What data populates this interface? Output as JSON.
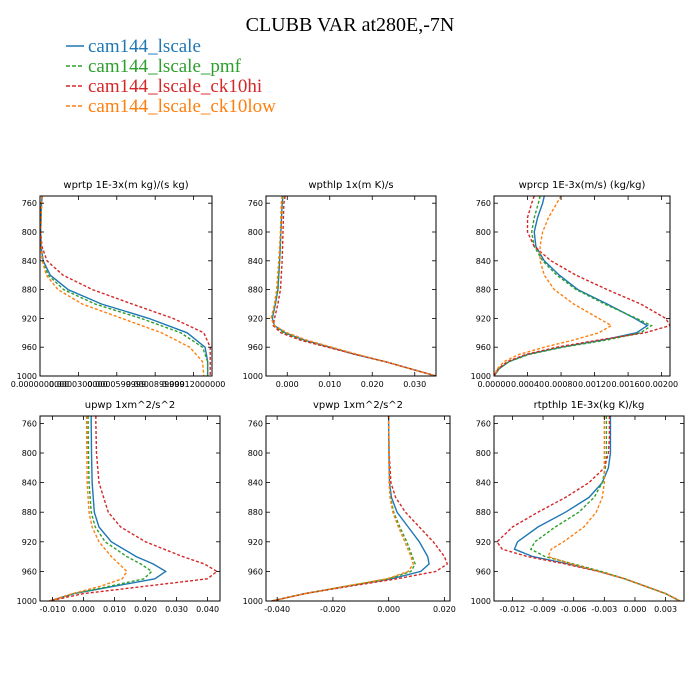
{
  "title": "CLUBB VAR at280E,-7N",
  "legend": [
    {
      "label": "cam144_lscale",
      "color": "#1f77b4",
      "dash": false
    },
    {
      "label": "cam144_lscale_pmf",
      "color": "#2ca02c",
      "dash": true
    },
    {
      "label": "cam144_lscale_ck10hi",
      "color": "#d62728",
      "dash": true
    },
    {
      "label": "cam144_lscale_ck10low",
      "color": "#ff7f0e",
      "dash": true
    }
  ],
  "chart_data": [
    {
      "type": "line",
      "title": "wprtp  1E-3x(m kg)/(s kg)",
      "ylim": [
        1000,
        750
      ],
      "yticks": [
        760,
        800,
        840,
        880,
        920,
        960,
        1000
      ],
      "xlim": [
        0.0,
        0.0001344
      ],
      "xticks": [
        0.0,
        3e-05,
        6e-05,
        9e-05,
        0.00012
      ],
      "xticklabels": [
        "0.0000000000",
        "0.0000300000",
        "0.0000599999",
        "0.0000899999",
        "0.00012000000"
      ],
      "y": [
        750,
        760,
        780,
        800,
        820,
        840,
        860,
        880,
        900,
        920,
        940,
        960,
        980,
        1000
      ],
      "series": [
        {
          "name": "cam144_lscale",
          "values": [
            1.7e-06,
            1.2e-06,
            8e-07,
            5e-07,
            8e-07,
            2.5e-06,
            8e-06,
            2.2e-05,
            4.8e-05,
            8.5e-05,
            0.000115,
            0.000129,
            0.000131,
            0.000131
          ]
        },
        {
          "name": "cam144_lscale_pmf",
          "values": [
            1.7e-06,
            1.2e-06,
            8e-07,
            5e-07,
            8e-07,
            2e-06,
            6.5e-06,
            1.85e-05,
            4.3e-05,
            7.9e-05,
            0.00011,
            0.000127,
            0.000131,
            0.000131
          ]
        },
        {
          "name": "cam144_lscale_ck10hi",
          "values": [
            1.7e-06,
            1.2e-06,
            8e-07,
            6e-07,
            1.5e-06,
            5.5e-06,
            1.8e-05,
            4.1e-05,
            7.2e-05,
            0.000104,
            0.000128,
            0.000133,
            0.000133,
            0.000133
          ]
        },
        {
          "name": "cam144_lscale_ck10low",
          "values": [
            1.7e-06,
            1.2e-06,
            8e-07,
            5e-07,
            7e-07,
            1.8e-06,
            5e-06,
            1.4e-05,
            3.3e-05,
            6.4e-05,
            9.5e-05,
            0.000117,
            0.000127,
            0.000128
          ]
        }
      ]
    },
    {
      "type": "line",
      "title": "wpthlp  1x(m K)/s",
      "ylim": [
        1000,
        750
      ],
      "yticks": [
        760,
        800,
        840,
        880,
        920,
        960,
        1000
      ],
      "xlim": [
        -0.005,
        0.035
      ],
      "xticks": [
        0.0,
        0.01,
        0.02,
        0.03
      ],
      "xticklabels": [
        "0.000",
        "0.010",
        "0.020",
        "0.030"
      ],
      "y": [
        750,
        760,
        800,
        840,
        880,
        900,
        920,
        930,
        940,
        950,
        960,
        970,
        980,
        990,
        1000
      ],
      "series": [
        {
          "name": "cam144_lscale",
          "values": [
            -0.001,
            -0.0012,
            -0.0015,
            -0.0018,
            -0.0022,
            -0.0028,
            -0.0035,
            -0.003,
            -0.0005,
            0.004,
            0.01,
            0.016,
            0.023,
            0.029,
            0.035
          ]
        },
        {
          "name": "cam144_lscale_pmf",
          "values": [
            -0.001,
            -0.0012,
            -0.0015,
            -0.0018,
            -0.0022,
            -0.0028,
            -0.0036,
            -0.0032,
            -0.0008,
            0.0036,
            0.0098,
            0.016,
            0.023,
            0.029,
            0.035
          ]
        },
        {
          "name": "cam144_lscale_ck10hi",
          "values": [
            -0.0005,
            -0.0008,
            -0.001,
            -0.0012,
            -0.0016,
            -0.0022,
            -0.003,
            -0.0033,
            -0.0015,
            0.003,
            0.0095,
            0.016,
            0.023,
            0.029,
            0.035
          ]
        },
        {
          "name": "cam144_lscale_ck10low",
          "values": [
            -0.0012,
            -0.0014,
            -0.0016,
            -0.002,
            -0.0025,
            -0.003,
            -0.0038,
            -0.003,
            0.0,
            0.0045,
            0.0105,
            0.0165,
            0.023,
            0.029,
            0.035
          ]
        }
      ]
    },
    {
      "type": "line",
      "title": "wprcp  1E-3x(m/s) (kg/kg)",
      "ylim": [
        1000,
        750
      ],
      "yticks": [
        760,
        800,
        840,
        880,
        920,
        960,
        1000
      ],
      "xlim": [
        0.0,
        0.0021
      ],
      "xticks": [
        0.0,
        0.0004,
        0.0008,
        0.0012,
        0.0016,
        0.002
      ],
      "xticklabels": [
        "0.00000",
        "0.00040",
        "0.00080",
        "0.00120",
        "0.00160",
        "0.00200"
      ],
      "y": [
        750,
        760,
        780,
        800,
        820,
        840,
        860,
        880,
        900,
        920,
        930,
        940,
        950,
        960,
        970,
        980,
        990,
        1000
      ],
      "series": [
        {
          "name": "cam144_lscale",
          "values": [
            0.0006,
            0.00058,
            0.00052,
            0.00048,
            0.0005,
            0.0006,
            0.00078,
            0.001,
            0.00135,
            0.00168,
            0.00183,
            0.0017,
            0.0013,
            0.0008,
            0.0004,
            0.00018,
            6e-05,
            0.0
          ]
        },
        {
          "name": "cam144_lscale_pmf",
          "values": [
            0.00055,
            0.00053,
            0.00048,
            0.00045,
            0.00048,
            0.00058,
            0.00075,
            0.00098,
            0.00132,
            0.0017,
            0.00188,
            0.00175,
            0.00135,
            0.00082,
            0.00042,
            0.00018,
            6e-05,
            0.0
          ]
        },
        {
          "name": "cam144_lscale_ck10hi",
          "values": [
            0.00048,
            0.00045,
            0.0004,
            0.0004,
            0.00048,
            0.00068,
            0.00098,
            0.00135,
            0.00175,
            0.00205,
            0.0021,
            0.0018,
            0.00125,
            0.00075,
            0.00038,
            0.00016,
            5e-05,
            0.0
          ]
        },
        {
          "name": "cam144_lscale_ck10low",
          "values": [
            0.0008,
            0.00075,
            0.00065,
            0.00058,
            0.00055,
            0.00055,
            0.0006,
            0.00072,
            0.00095,
            0.00125,
            0.0014,
            0.00125,
            0.00095,
            0.0006,
            0.0003,
            0.00012,
            4e-05,
            0.0
          ]
        }
      ]
    },
    {
      "type": "line",
      "title": "upwp  1xm^2/s^2",
      "ylim": [
        1000,
        750
      ],
      "yticks": [
        760,
        800,
        840,
        880,
        920,
        960,
        1000
      ],
      "xlim": [
        -0.014,
        0.044
      ],
      "xticks": [
        -0.01,
        0.0,
        0.01,
        0.02,
        0.03,
        0.04
      ],
      "xticklabels": [
        "-0.010",
        "0.000",
        "0.010",
        "0.020",
        "0.030",
        "0.040"
      ],
      "y": [
        750,
        760,
        800,
        840,
        880,
        900,
        920,
        940,
        950,
        960,
        970,
        980,
        990,
        1000
      ],
      "series": [
        {
          "name": "cam144_lscale",
          "values": [
            0.0025,
            0.0025,
            0.0026,
            0.0028,
            0.0035,
            0.005,
            0.009,
            0.017,
            0.0225,
            0.0265,
            0.023,
            0.01,
            -0.003,
            -0.011
          ]
        },
        {
          "name": "cam144_lscale_pmf",
          "values": [
            0.0015,
            0.0015,
            0.0016,
            0.0018,
            0.0025,
            0.0038,
            0.007,
            0.014,
            0.0185,
            0.022,
            0.0195,
            0.0085,
            -0.003,
            -0.011
          ]
        },
        {
          "name": "cam144_lscale_ck10hi",
          "values": [
            0.004,
            0.004,
            0.0042,
            0.005,
            0.008,
            0.012,
            0.02,
            0.032,
            0.039,
            0.043,
            0.04,
            0.02,
            0.0,
            -0.011
          ]
        },
        {
          "name": "cam144_lscale_ck10low",
          "values": [
            0.001,
            0.001,
            0.0011,
            0.0012,
            0.0018,
            0.0028,
            0.005,
            0.009,
            0.0115,
            0.014,
            0.0125,
            0.0055,
            -0.0035,
            -0.011
          ]
        }
      ]
    },
    {
      "type": "line",
      "title": "vpwp  1xm^2/s^2",
      "ylim": [
        1000,
        750
      ],
      "yticks": [
        760,
        800,
        840,
        880,
        920,
        960,
        1000
      ],
      "xlim": [
        -0.044,
        0.022
      ],
      "xticks": [
        -0.04,
        -0.02,
        0.0,
        0.02
      ],
      "xticklabels": [
        "-0.040",
        "-0.020",
        "0.000",
        "0.020"
      ],
      "y": [
        750,
        760,
        800,
        840,
        860,
        880,
        900,
        920,
        940,
        950,
        960,
        970,
        980,
        990,
        1000
      ],
      "series": [
        {
          "name": "cam144_lscale",
          "values": [
            0.0,
            0.0,
            0.0001,
            0.0003,
            0.001,
            0.003,
            0.007,
            0.011,
            0.014,
            0.0145,
            0.0115,
            0.001,
            -0.015,
            -0.03,
            -0.042
          ]
        },
        {
          "name": "cam144_lscale_pmf",
          "values": [
            0.0,
            0.0,
            0.0001,
            0.0002,
            0.0006,
            0.0018,
            0.004,
            0.0065,
            0.0085,
            0.0095,
            0.008,
            0.0,
            -0.015,
            -0.03,
            -0.042
          ]
        },
        {
          "name": "cam144_lscale_ck10hi",
          "values": [
            0.0,
            0.0,
            0.0002,
            0.0008,
            0.0025,
            0.006,
            0.011,
            0.016,
            0.02,
            0.021,
            0.017,
            0.003,
            -0.014,
            -0.03,
            -0.042
          ]
        },
        {
          "name": "cam144_lscale_ck10low",
          "values": [
            0.0,
            0.0,
            0.0001,
            0.0002,
            0.0005,
            0.0015,
            0.0035,
            0.0058,
            0.008,
            0.0088,
            0.007,
            -0.0005,
            -0.0155,
            -0.03,
            -0.042
          ]
        }
      ]
    },
    {
      "type": "line",
      "title": "rtpthlp  1E-3x(kg K)/kg",
      "ylim": [
        1000,
        750
      ],
      "yticks": [
        760,
        800,
        840,
        880,
        920,
        960,
        1000
      ],
      "xlim": [
        -0.0138,
        0.0048
      ],
      "xticks": [
        -0.012,
        -0.009,
        -0.006,
        -0.003,
        0.0,
        0.003
      ],
      "xticklabels": [
        "-0.012",
        "-0.009",
        "-0.006",
        "-0.003",
        "0.000",
        "0.003"
      ],
      "y": [
        750,
        760,
        780,
        800,
        820,
        840,
        860,
        880,
        900,
        920,
        930,
        940,
        950,
        960,
        970,
        980,
        990,
        1000
      ],
      "series": [
        {
          "name": "cam144_lscale",
          "values": [
            -0.0024,
            -0.0024,
            -0.0024,
            -0.0024,
            -0.0026,
            -0.0032,
            -0.0045,
            -0.0068,
            -0.0095,
            -0.0115,
            -0.0118,
            -0.01,
            -0.0065,
            -0.0035,
            -0.001,
            0.001,
            0.003,
            0.0044
          ]
        },
        {
          "name": "cam144_lscale_pmf",
          "values": [
            -0.0028,
            -0.0028,
            -0.0028,
            -0.0028,
            -0.0029,
            -0.0032,
            -0.004,
            -0.0055,
            -0.0078,
            -0.0098,
            -0.0102,
            -0.0088,
            -0.006,
            -0.0033,
            -0.001,
            0.001,
            0.003,
            0.0044
          ]
        },
        {
          "name": "cam144_lscale_ck10hi",
          "values": [
            -0.0025,
            -0.0025,
            -0.0025,
            -0.0026,
            -0.003,
            -0.0045,
            -0.0068,
            -0.0095,
            -0.012,
            -0.0135,
            -0.013,
            -0.0105,
            -0.0068,
            -0.0036,
            -0.001,
            0.001,
            0.003,
            0.0044
          ]
        },
        {
          "name": "cam144_lscale_ck10low",
          "values": [
            -0.003,
            -0.003,
            -0.003,
            -0.003,
            -0.003,
            -0.003,
            -0.0032,
            -0.0038,
            -0.005,
            -0.007,
            -0.0082,
            -0.0085,
            -0.0062,
            -0.0035,
            -0.001,
            0.001,
            0.003,
            0.0044
          ]
        }
      ]
    }
  ]
}
